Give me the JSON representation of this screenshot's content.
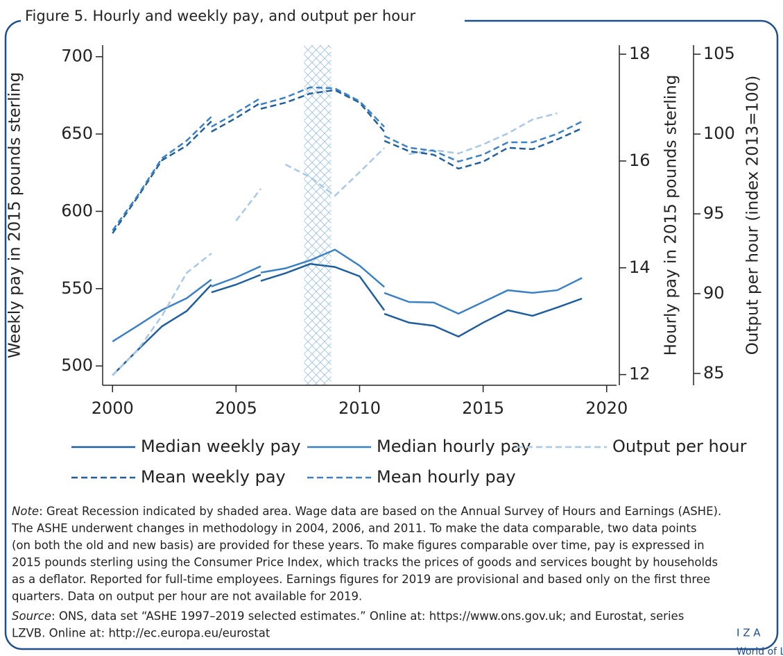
{
  "chart_data": {
    "type": "line",
    "title": "Figure 5. Hourly and weekly pay, and output per hour",
    "y_label": "Weekly pay in 2015 pounds sterling",
    "y2_label": "Hourly pay in 2015 pounds sterling",
    "y3_label": "Output per hour (index 2013=100)",
    "x": [
      2000,
      2001,
      2002,
      2003,
      2004,
      null,
      2004,
      2005,
      2006,
      null,
      2006,
      2007,
      2008,
      2009,
      2010,
      2011,
      null,
      2011,
      2012,
      2013,
      2014,
      2015,
      2016,
      2017,
      2018,
      2019
    ],
    "xlim": [
      1999.6,
      2020.4
    ],
    "xticks": [
      2000,
      2005,
      2010,
      2015,
      2020
    ],
    "ylim": [
      487.5,
      707.5
    ],
    "yticks": [
      500,
      550,
      600,
      650,
      700
    ],
    "y2lim": [
      11.8,
      18.17
    ],
    "y2ticks": [
      12,
      14,
      16,
      18
    ],
    "y3lim": [
      84.26,
      105.57
    ],
    "y3ticks": [
      85,
      90,
      95,
      100,
      105
    ],
    "recession": [
      2007.75,
      2008.85
    ],
    "series": [
      {
        "name": "Median weekly pay",
        "color": "#1f5e9c",
        "dash": false,
        "axis": "y",
        "values": [
          494,
          510,
          525.6,
          535.5,
          552.6,
          null,
          547.6,
          552.6,
          559,
          null,
          555,
          560,
          566,
          564,
          558,
          536,
          null,
          533.7,
          528,
          526,
          519,
          528,
          536,
          532.4,
          537.8,
          543.6
        ]
      },
      {
        "name": "Median hourly pay",
        "color": "#3a80c2",
        "dash": false,
        "axis": "y2",
        "values": [
          12.62,
          12.91,
          13.21,
          13.43,
          13.78,
          null,
          13.65,
          13.82,
          14.03,
          null,
          13.91,
          13.99,
          14.14,
          14.34,
          14.04,
          13.64,
          null,
          13.53,
          13.36,
          13.35,
          13.14,
          13.36,
          13.58,
          13.53,
          13.58,
          13.81
        ]
      },
      {
        "name": "Output per hour",
        "color": "#a8c8e6",
        "dash": true,
        "axis": "y3",
        "values": [
          84.9,
          86.43,
          88.61,
          91.3,
          92.52,
          null,
          null,
          94.57,
          96.57,
          null,
          null,
          98.09,
          97.3,
          96.13,
          97.61,
          99.13,
          null,
          null,
          98.74,
          99.0,
          98.78,
          99.35,
          100.04,
          100.91,
          101.3,
          null
        ]
      },
      {
        "name": "Mean weekly pay",
        "color": "#1f5e9c",
        "dash": true,
        "axis": "y",
        "values": [
          585.8,
          608.8,
          633,
          642.5,
          658.2,
          null,
          651.5,
          660.4,
          670.3,
          null,
          666.3,
          670.3,
          676.2,
          678.4,
          670.3,
          651.5,
          null,
          645.6,
          638.9,
          636.6,
          627.6,
          632.1,
          641.1,
          640.2,
          646.5,
          653.7
        ]
      },
      {
        "name": "Mean hourly pay",
        "color": "#3a80c2",
        "dash": true,
        "axis": "y2",
        "values": [
          14.7,
          15.34,
          16.05,
          16.38,
          16.83,
          null,
          16.64,
          16.9,
          17.18,
          null,
          17.06,
          17.19,
          17.38,
          17.36,
          17.12,
          16.64,
          null,
          16.47,
          16.25,
          16.19,
          15.99,
          16.12,
          16.35,
          16.35,
          16.51,
          16.74
        ]
      }
    ]
  },
  "note": {
    "label": "Note",
    "lines": [
      ": Great Recession indicated by shaded area. Wage data are based on the Annual Survey of Hours and Earnings (ASHE).",
      "The ASHE underwent changes in methodology in 2004, 2006, and 2011. To make the data comparable, two data points",
      "(on both the old and new basis) are provided for these years. To make figures comparable over time, pay is expressed in",
      "2015 pounds sterling using the Consumer Price Index, which tracks the prices of goods and services bought by households",
      "as a deflator. Reported for full-time employees. Earnings figures for 2019 are provisional and based only on the first three",
      "quarters. Data on output per hour are not available for 2019."
    ]
  },
  "source": {
    "label": "Source",
    "lines": [
      ": ONS, data set “ASHE 1997–2019 selected estimates.” Online at: https://www.ons.gov.uk; and Eurostat, series",
      "LZVB. Online at: http://ec.europa.eu/eurostat"
    ]
  },
  "logo": {
    "brand": "I Z A",
    "name": "World of Labor"
  }
}
